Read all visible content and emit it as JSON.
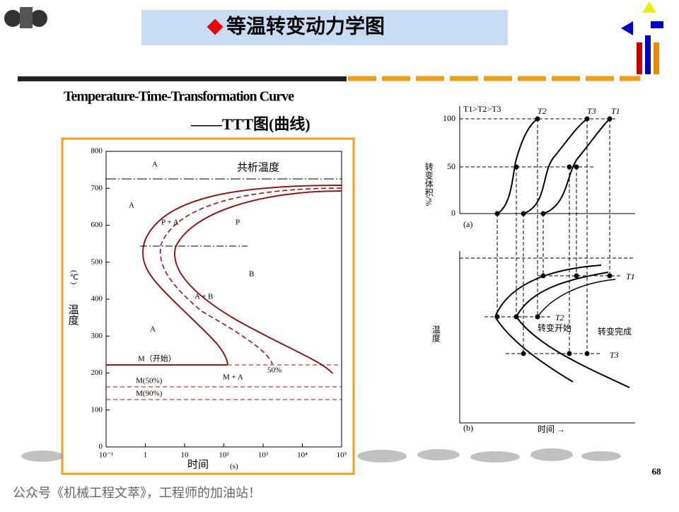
{
  "header": {
    "title": "等温转变动力学图"
  },
  "heading": {
    "line1": "Temperature-Time-Transformation Curve",
    "line2": "——TTT图(曲线)"
  },
  "left_chart": {
    "y_axis_label": "温度",
    "y_unit": "(℃)",
    "x_axis_label": "时间",
    "x_unit": "(s)",
    "yticks": [
      "800",
      "700",
      "600",
      "500",
      "400",
      "300",
      "200",
      "100",
      "0"
    ],
    "xticks": [
      "10⁻¹",
      "1",
      "10",
      "10²",
      "10³",
      "10⁴",
      "10⁵"
    ],
    "regions": [
      "A",
      "A",
      "A",
      "P",
      "B",
      "M + A"
    ],
    "annotations": {
      "eutectoid": "共析温度",
      "ms": "M（开始）",
      "m50": "M(50%)",
      "m90": "M(90%)",
      "p50": "50%",
      "pa": "P + A",
      "ab": "A + B"
    }
  },
  "right_chart": {
    "condition": "T1>T2>T3",
    "a_label": "(a)",
    "b_label": "(b)",
    "y_axis_a": "转变体积/%",
    "yticks_a": [
      "100",
      "50",
      "0"
    ],
    "curve_labels": [
      "T2",
      "T3",
      "T1"
    ],
    "y_axis_b": "温度",
    "x_axis_b": "时间 →",
    "t_labels": [
      "T1",
      "T2",
      "T3"
    ],
    "finish": "转变完成",
    "start": "转变开始"
  },
  "footer": {
    "page": "68",
    "credit": "公众号《机械工程文萃》，工程师的加油站！"
  }
}
